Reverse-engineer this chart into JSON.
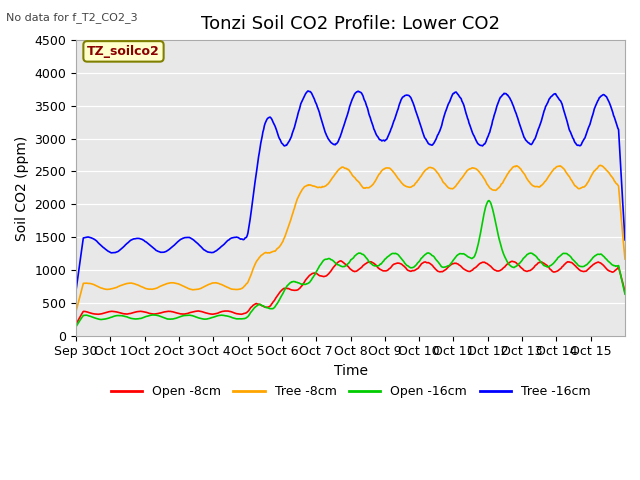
{
  "title": "Tonzi Soil CO2 Profile: Lower CO2",
  "no_data_text": "No data for f_T2_CO2_3",
  "ylabel": "Soil CO2 (ppm)",
  "xlabel": "Time",
  "legend_label": "TZ_soilco2",
  "ylim": [
    0,
    4500
  ],
  "yticks": [
    0,
    500,
    1000,
    1500,
    2000,
    2500,
    3000,
    3500,
    4000,
    4500
  ],
  "series_labels": [
    "Open -8cm",
    "Tree -8cm",
    "Open -16cm",
    "Tree -16cm"
  ],
  "series_colors": [
    "#ff0000",
    "#ffa500",
    "#00cc00",
    "#0000ff"
  ],
  "xtick_labels": [
    "Sep 30",
    "Oct 1",
    "Oct 2",
    "Oct 3",
    "Oct 4",
    "Oct 5",
    "Oct 6",
    "Oct 7",
    "Oct 8",
    "Oct 9",
    "Oct 10",
    "Oct 11",
    "Oct 12",
    "Oct 13",
    "Oct 14",
    "Oct 15"
  ],
  "plot_bg_color": "#e8e8e8",
  "title_fontsize": 13,
  "axis_label_fontsize": 10,
  "tick_fontsize": 9,
  "n_days": 16,
  "oct5_day": 5.0
}
